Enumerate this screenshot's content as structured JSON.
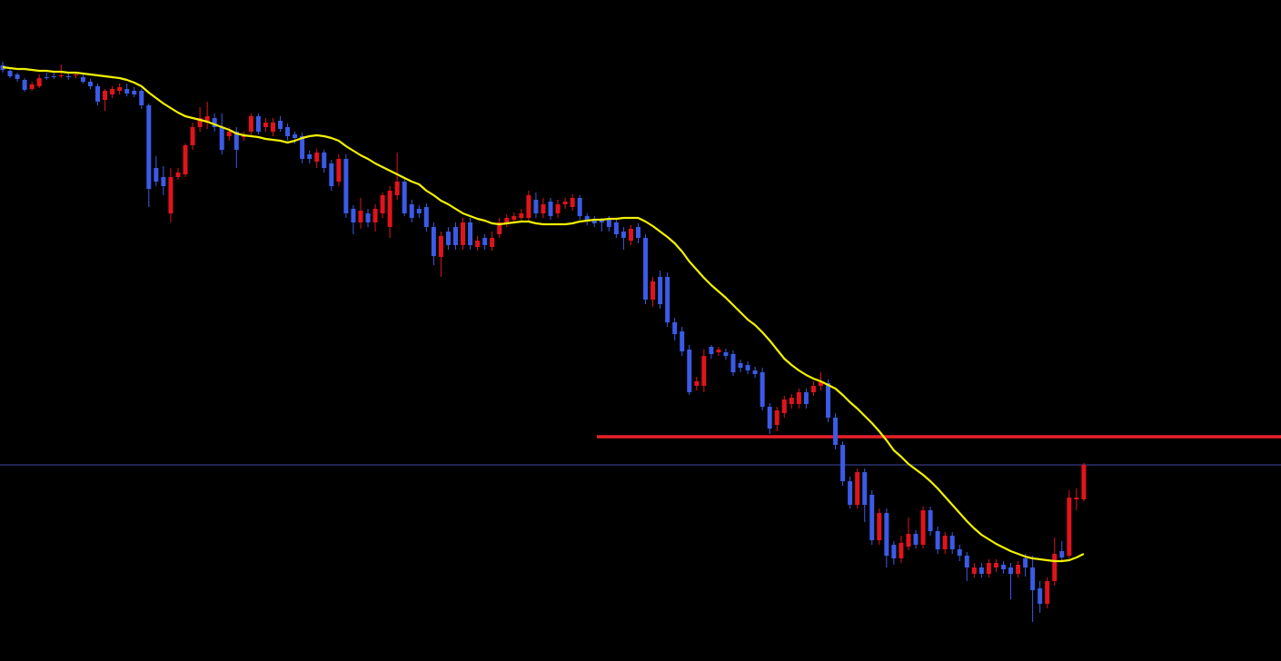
{
  "chart_data": {
    "type": "candlestick",
    "up_color": "#e0141c",
    "down_color": "#3b5be6",
    "ylim": [
      0,
      728
    ],
    "open": [
      656,
      650,
      646,
      640,
      630,
      633,
      643,
      644,
      644,
      644,
      645,
      643,
      638,
      633,
      618,
      624,
      628,
      630,
      628,
      628,
      612,
      543,
      533,
      493,
      533,
      536,
      568,
      588,
      593,
      598,
      588,
      578,
      583,
      578,
      583,
      600,
      588,
      583,
      595,
      588,
      580,
      578,
      558,
      550,
      560,
      548,
      528,
      553,
      498,
      483,
      493,
      483,
      493,
      478,
      513,
      528,
      503,
      498,
      500,
      478,
      445,
      473,
      478,
      458,
      483,
      456,
      466,
      456,
      470,
      483,
      486,
      488,
      488,
      508,
      493,
      506,
      493,
      503,
      500,
      510,
      490,
      486,
      485,
      486,
      483,
      473,
      463,
      478,
      466,
      398,
      423,
      423,
      373,
      363,
      343,
      303,
      303,
      346,
      340,
      340,
      338,
      328,
      326,
      320,
      318,
      280,
      260,
      273,
      283,
      283,
      296,
      296,
      303,
      306,
      268,
      238,
      198,
      172,
      208,
      183,
      133,
      163,
      128,
      113,
      126,
      140,
      128,
      166,
      143,
      123,
      138,
      123,
      116,
      96,
      103,
      96,
      103,
      106,
      103,
      96,
      113,
      103,
      80,
      63,
      88,
      121,
      116,
      178,
      178
    ],
    "high": [
      660,
      652,
      648,
      642,
      638,
      646,
      648,
      648,
      657,
      648,
      649,
      646,
      641,
      636,
      630,
      633,
      636,
      636,
      632,
      630,
      614,
      556,
      545,
      543,
      543,
      570,
      593,
      610,
      616,
      603,
      603,
      588,
      588,
      583,
      603,
      603,
      598,
      598,
      600,
      592,
      583,
      582,
      562,
      564,
      563,
      552,
      558,
      558,
      502,
      510,
      498,
      503,
      516,
      523,
      560,
      532,
      508,
      502,
      504,
      483,
      473,
      478,
      483,
      488,
      488,
      468,
      470,
      473,
      488,
      492,
      494,
      498,
      518,
      516,
      510,
      510,
      508,
      510,
      514,
      513,
      493,
      490,
      488,
      490,
      488,
      478,
      480,
      482,
      470,
      423,
      430,
      428,
      378,
      368,
      348,
      313,
      343,
      348,
      346,
      344,
      342,
      332,
      330,
      324,
      323,
      284,
      280,
      292,
      294,
      300,
      300,
      308,
      318,
      310,
      273,
      242,
      203,
      212,
      212,
      188,
      168,
      168,
      132,
      138,
      158,
      144,
      170,
      170,
      148,
      142,
      142,
      128,
      120,
      108,
      108,
      112,
      112,
      110,
      108,
      110,
      118,
      116,
      88,
      92,
      136,
      132,
      188,
      190,
      218
    ],
    "low": [
      648,
      642,
      638,
      627,
      628,
      631,
      640,
      641,
      642,
      640,
      642,
      636,
      630,
      612,
      606,
      620,
      624,
      622,
      621,
      608,
      500,
      523,
      513,
      483,
      530,
      533,
      563,
      583,
      586,
      583,
      558,
      573,
      543,
      573,
      578,
      580,
      583,
      578,
      583,
      573,
      570,
      548,
      548,
      543,
      538,
      518,
      523,
      488,
      470,
      476,
      478,
      473,
      488,
      466,
      508,
      490,
      483,
      488,
      473,
      436,
      423,
      453,
      453,
      453,
      453,
      452,
      453,
      452,
      466,
      478,
      482,
      484,
      484,
      488,
      488,
      486,
      488,
      498,
      496,
      486,
      480,
      478,
      473,
      473,
      466,
      453,
      458,
      460,
      393,
      390,
      388,
      368,
      353,
      336,
      293,
      298,
      296,
      333,
      336,
      332,
      314,
      318,
      316,
      312,
      276,
      250,
      253,
      268,
      278,
      278,
      278,
      292,
      298,
      263,
      233,
      193,
      168,
      168,
      153,
      128,
      128,
      103,
      106,
      108,
      122,
      124,
      124,
      138,
      118,
      118,
      118,
      110,
      88,
      92,
      92,
      92,
      98,
      96,
      68,
      92,
      93,
      43,
      53,
      58,
      83,
      110,
      113,
      166,
      176
    ],
    "close": [
      651,
      644,
      641,
      629,
      635,
      642,
      642,
      643,
      645,
      643,
      646,
      638,
      633,
      616,
      628,
      630,
      632,
      625,
      624,
      612,
      520,
      528,
      523,
      533,
      538,
      568,
      588,
      598,
      600,
      588,
      563,
      583,
      563,
      578,
      600,
      583,
      593,
      593,
      586,
      578,
      576,
      553,
      553,
      560,
      543,
      523,
      553,
      493,
      483,
      496,
      483,
      498,
      513,
      518,
      528,
      493,
      488,
      493,
      478,
      446,
      468,
      458,
      458,
      483,
      458,
      463,
      458,
      466,
      483,
      488,
      490,
      493,
      513,
      493,
      503,
      490,
      503,
      506,
      510,
      490,
      485,
      482,
      483,
      478,
      470,
      466,
      476,
      466,
      398,
      418,
      393,
      373,
      360,
      341,
      296,
      308,
      336,
      338,
      343,
      336,
      318,
      323,
      320,
      316,
      280,
      256,
      276,
      288,
      290,
      296,
      283,
      303,
      308,
      268,
      238,
      198,
      172,
      208,
      172,
      133,
      163,
      116,
      113,
      130,
      140,
      128,
      166,
      143,
      123,
      138,
      123,
      116,
      103,
      103,
      96,
      108,
      108,
      101,
      96,
      106,
      103,
      78,
      63,
      88,
      118,
      114,
      180,
      180,
      216
    ],
    "moving_average": {
      "color": "#f2f200",
      "values": [
        654,
        653,
        652,
        652,
        651,
        650,
        650,
        649,
        649,
        648,
        648,
        647,
        646,
        645,
        644,
        643,
        642,
        640,
        637,
        633,
        626,
        620,
        614,
        609,
        604,
        600,
        598,
        596,
        594,
        591,
        588,
        585,
        581,
        579,
        578,
        577,
        575,
        574,
        573,
        571,
        573,
        576,
        578,
        579,
        578,
        576,
        573,
        567,
        562,
        557,
        553,
        548,
        544,
        540,
        536,
        532,
        528,
        525,
        518,
        513,
        507,
        503,
        498,
        493,
        490,
        487,
        485,
        482,
        481,
        482,
        483,
        484,
        484,
        482,
        481,
        481,
        481,
        481,
        482,
        484,
        485,
        486,
        486,
        487,
        487,
        488,
        488,
        488,
        484,
        479,
        473,
        467,
        460,
        451,
        440,
        431,
        422,
        414,
        407,
        400,
        392,
        384,
        376,
        370,
        362,
        353,
        343,
        333,
        326,
        320,
        315,
        311,
        308,
        304,
        300,
        293,
        285,
        278,
        270,
        262,
        253,
        243,
        232,
        225,
        217,
        211,
        205,
        198,
        190,
        181,
        172,
        163,
        154,
        146,
        139,
        134,
        129,
        125,
        121,
        118,
        115,
        113,
        112,
        111,
        110,
        110,
        111,
        114,
        118
      ]
    },
    "levels": [
      {
        "value": 247,
        "color": "#e8202a"
      },
      {
        "value": 216,
        "color": "#3d4aa6"
      }
    ]
  }
}
